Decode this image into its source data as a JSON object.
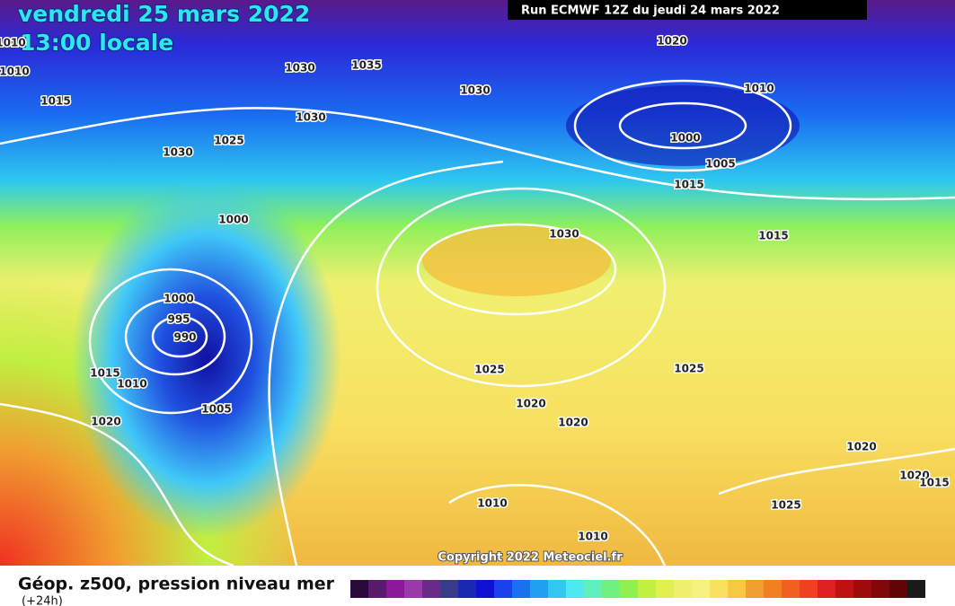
{
  "header": {
    "date": "vendredi 25 mars 2022",
    "time": "13:00 locale",
    "run": "Run ECMWF 12Z du jeudi 24 mars 2022"
  },
  "isobar_labels": [
    "1010",
    "1010",
    "1015",
    "1030",
    "1035",
    "1030",
    "1025",
    "1030",
    "1030",
    "1020",
    "1010",
    "1000",
    "1005",
    "1015",
    "1015",
    "1030",
    "1000",
    "1000",
    "995",
    "990",
    "1015",
    "1010",
    "1005",
    "1020",
    "1025",
    "1025",
    "1020",
    "1020",
    "1020",
    "1020",
    "1015",
    "1010",
    "1025",
    "1010"
  ],
  "copyright": "Copyright 2022 Meteociel.fr",
  "footer": {
    "title": "Géop. z500, pression niveau mer",
    "subtitle": "(+24h)"
  }
}
